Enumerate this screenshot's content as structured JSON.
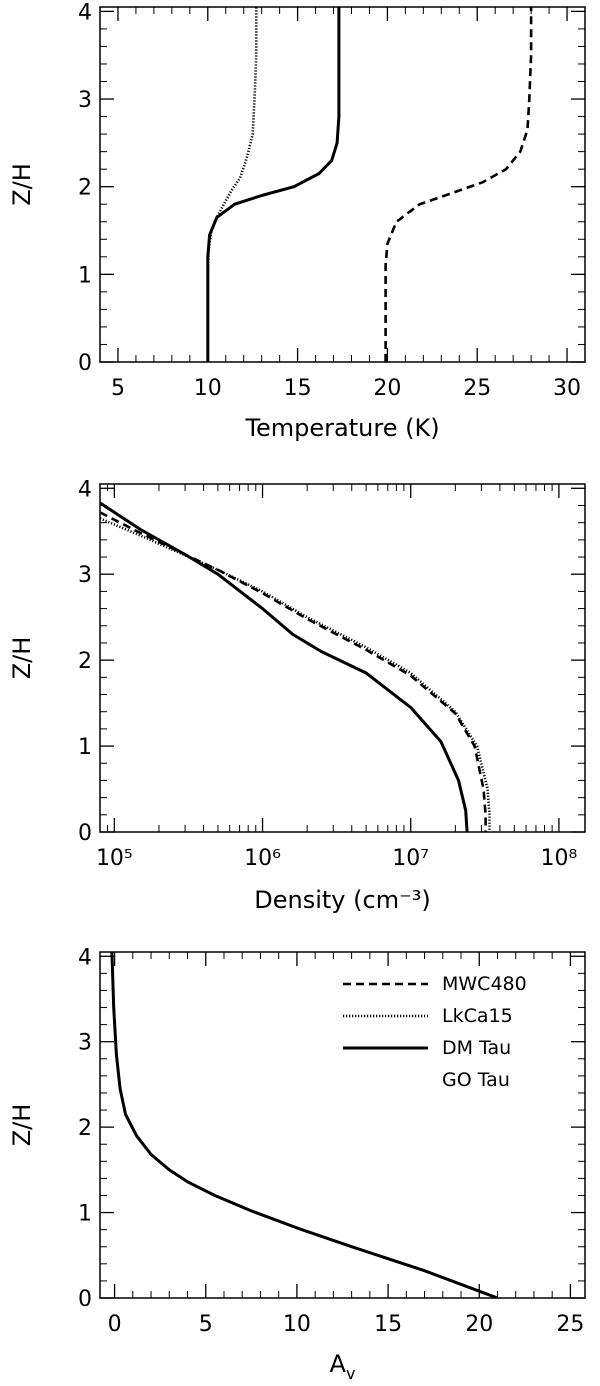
{
  "chart_data": [
    {
      "type": "line",
      "xlabel": "Temperature (K)",
      "ylabel": "Z/H",
      "xlim": [
        4,
        31
      ],
      "ylim": [
        0,
        4.05
      ],
      "xscale": "linear",
      "xticks": [
        5,
        10,
        15,
        20,
        25,
        30
      ],
      "xtick_labels": [
        "5",
        "10",
        "15",
        "20",
        "25",
        "30"
      ],
      "yticks": [
        0,
        1,
        2,
        3,
        4
      ],
      "ytick_labels": [
        "0",
        "1",
        "2",
        "3",
        "4"
      ],
      "series": [
        {
          "style": "dotted",
          "x": [
            10.0,
            10.0,
            10.05,
            10.2,
            10.5,
            10.9,
            11.3,
            11.8,
            12.2,
            12.5,
            12.6,
            12.7,
            12.7
          ],
          "y": [
            0.0,
            1.0,
            1.3,
            1.5,
            1.65,
            1.8,
            1.95,
            2.1,
            2.35,
            2.6,
            3.0,
            3.5,
            4.05
          ]
        },
        {
          "style": "solid",
          "x": [
            10.0,
            10.0,
            10.1,
            10.5,
            11.5,
            13.0,
            14.8,
            16.2,
            16.9,
            17.2,
            17.3,
            17.3,
            17.3
          ],
          "y": [
            0.0,
            1.2,
            1.45,
            1.65,
            1.8,
            1.9,
            2.0,
            2.15,
            2.3,
            2.5,
            2.8,
            3.3,
            4.05
          ]
        },
        {
          "style": "dashed",
          "x": [
            19.9,
            19.9,
            20.0,
            20.5,
            21.8,
            23.5,
            25.3,
            26.6,
            27.4,
            27.8,
            27.9,
            28.0,
            28.0
          ],
          "y": [
            0.0,
            1.1,
            1.35,
            1.6,
            1.8,
            1.92,
            2.05,
            2.2,
            2.4,
            2.65,
            3.0,
            3.5,
            4.05
          ]
        }
      ]
    },
    {
      "type": "line",
      "xlabel": "Density (cm⁻³)",
      "ylabel": "Z/H",
      "xlim": [
        80000,
        150000000
      ],
      "ylim": [
        0,
        4.05
      ],
      "xscale": "log",
      "xticks": [
        100000,
        1000000,
        10000000,
        100000000
      ],
      "xtick_labels": [
        "10⁵",
        "10⁶",
        "10⁷",
        "10⁸"
      ],
      "yticks": [
        0,
        1,
        2,
        3,
        4
      ],
      "ytick_labels": [
        "0",
        "1",
        "2",
        "3",
        "4"
      ],
      "series": [
        {
          "style": "dotted",
          "x": [
            80000,
            150000,
            300000,
            500000,
            1000000,
            2000000,
            5000000,
            10000000,
            20000000,
            28000000,
            33000000,
            34000000,
            34000000
          ],
          "y": [
            3.65,
            3.45,
            3.22,
            3.05,
            2.8,
            2.5,
            2.15,
            1.85,
            1.4,
            1.0,
            0.5,
            0.2,
            0.0
          ]
        },
        {
          "style": "dashed",
          "x": [
            80000,
            150000,
            300000,
            500000,
            1000000,
            2000000,
            5000000,
            10000000,
            20000000,
            27000000,
            31000000,
            32000000,
            32000000
          ],
          "y": [
            3.72,
            3.48,
            3.23,
            3.05,
            2.78,
            2.48,
            2.12,
            1.82,
            1.38,
            1.0,
            0.5,
            0.2,
            0.0
          ]
        },
        {
          "style": "solid",
          "x": [
            80000,
            150000,
            300000,
            500000,
            1000000,
            1600000,
            2500000,
            5000000,
            10000000,
            16000000,
            21000000,
            23500000,
            24000000
          ],
          "y": [
            3.83,
            3.52,
            3.23,
            3.0,
            2.6,
            2.3,
            2.1,
            1.85,
            1.45,
            1.05,
            0.6,
            0.25,
            0.0
          ]
        }
      ]
    },
    {
      "type": "line",
      "xlabel": "A",
      "xlabel_sub": "v",
      "ylabel": "Z/H",
      "xlim": [
        -0.8,
        25.8
      ],
      "ylim": [
        0,
        4.05
      ],
      "xscale": "linear",
      "xticks": [
        0,
        5,
        10,
        15,
        20,
        25
      ],
      "xtick_labels": [
        "0",
        "5",
        "10",
        "15",
        "20",
        "25"
      ],
      "yticks": [
        0,
        1,
        2,
        3,
        4
      ],
      "ytick_labels": [
        "0",
        "1",
        "2",
        "3",
        "4"
      ],
      "legend_position": "top-right",
      "legend": [
        {
          "label": "MWC480",
          "style": "dashed"
        },
        {
          "label": "LkCa15",
          "style": "dotted"
        },
        {
          "label": "DM Tau",
          "style": "solid"
        },
        {
          "label": "GO Tau",
          "style": "none"
        }
      ],
      "series": [
        {
          "style": "dotted",
          "x": [
            21.0,
            17.0,
            13.0,
            10.0,
            7.5,
            5.5,
            4.0,
            3.0,
            2.0,
            1.2,
            0.6,
            0.3,
            0.1,
            -0.05,
            -0.15
          ],
          "y": [
            0.0,
            0.32,
            0.6,
            0.82,
            1.02,
            1.2,
            1.36,
            1.5,
            1.68,
            1.9,
            2.15,
            2.45,
            2.85,
            3.4,
            4.05
          ]
        },
        {
          "style": "solid",
          "x": [
            21.0,
            17.0,
            13.0,
            10.0,
            7.5,
            5.5,
            4.0,
            3.0,
            2.0,
            1.2,
            0.6,
            0.3,
            0.1,
            -0.05,
            -0.15
          ],
          "y": [
            0.0,
            0.32,
            0.6,
            0.82,
            1.02,
            1.2,
            1.36,
            1.5,
            1.68,
            1.9,
            2.15,
            2.45,
            2.85,
            3.4,
            4.05
          ]
        }
      ]
    }
  ]
}
